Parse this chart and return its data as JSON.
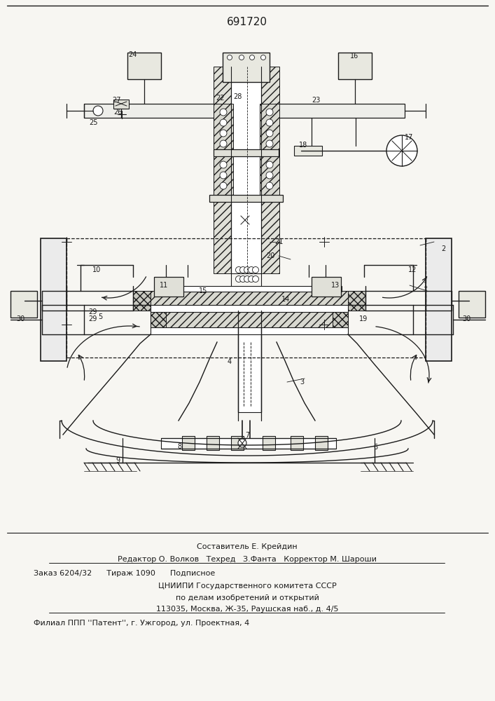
{
  "patent_number": "691720",
  "bg_color": "#f7f6f2",
  "line_color": "#1a1a1a",
  "hatch_color": "#1a1a1a",
  "footer": {
    "line1": "Составитель Е. Крейдин",
    "line2": "Редактор О. Волков   Техред   З.Фанта   Корректор М. Шароши",
    "line3": "Заказ 6204/32      Тираж 1090      Подписное",
    "line4": "ЦНИИПИ Государственного комитета СССР",
    "line5": "по делам изобретений и открытий",
    "line6": "113035, Москва, Ж-35, Раушская наб., д. 4/5",
    "line7": "Филиал ППП ''Патент'', г. Ужгород, ул. Проектная, 4"
  }
}
